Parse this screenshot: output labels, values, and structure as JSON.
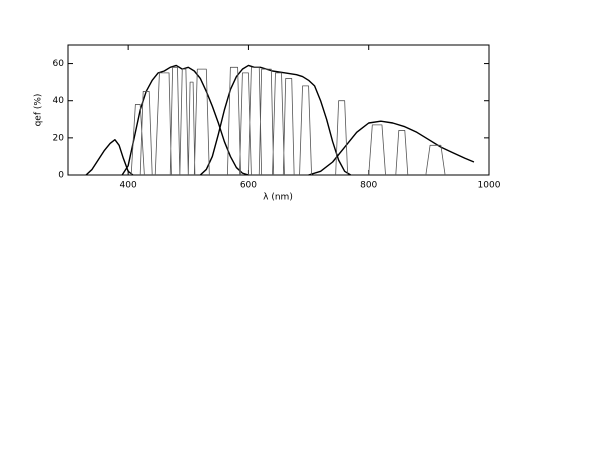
{
  "chart_data": {
    "type": "line",
    "xlabel": "λ (nm)",
    "ylabel": "qef (%)",
    "xlim": [
      300,
      1000
    ],
    "ylim": [
      0,
      70
    ],
    "xticks": [
      400,
      600,
      800,
      1000
    ],
    "yticks": [
      0,
      20,
      40,
      60
    ],
    "grid": false,
    "series": [
      {
        "color": "#000000",
        "width": 1.4,
        "x": [
          330,
          340,
          350,
          360,
          370,
          378,
          385,
          392,
          400,
          408
        ],
        "values": [
          0,
          3,
          8,
          13,
          17,
          19,
          16,
          9,
          2,
          0
        ]
      },
      {
        "color": "#000000",
        "width": 1.4,
        "x": [
          390,
          400,
          410,
          420,
          430,
          440,
          450,
          460,
          470,
          480,
          490,
          500,
          510,
          520,
          530,
          540,
          550,
          560,
          570,
          580,
          590,
          600
        ],
        "values": [
          0,
          5,
          20,
          35,
          45,
          51,
          55,
          56,
          58,
          59,
          57,
          58,
          56,
          52,
          45,
          37,
          28,
          18,
          10,
          4,
          1,
          0
        ]
      },
      {
        "color": "#000000",
        "width": 1.4,
        "x": [
          520,
          530,
          540,
          550,
          560,
          570,
          580,
          590,
          600,
          610,
          620,
          640,
          660,
          680,
          690,
          700,
          710,
          720,
          730,
          740,
          750,
          760,
          770
        ],
        "values": [
          0,
          3,
          10,
          22,
          35,
          46,
          53,
          57,
          59,
          58,
          58,
          56,
          55,
          54,
          53,
          51,
          48,
          40,
          30,
          18,
          8,
          2,
          0
        ]
      },
      {
        "color": "#000000",
        "width": 1.4,
        "x": [
          700,
          720,
          740,
          760,
          780,
          800,
          820,
          840,
          860,
          880,
          900,
          920,
          940,
          960,
          975
        ],
        "values": [
          0,
          2,
          7,
          15,
          23,
          28,
          29,
          28,
          26,
          23,
          19,
          15,
          12,
          9,
          7
        ]
      },
      {
        "color": "#555555",
        "width": 0.8,
        "x": [
          405,
          412,
          420,
          427,
          427,
          420,
          425,
          435,
          440,
          440,
          445,
          452,
          468,
          472,
          472,
          470,
          474,
          482,
          486,
          486,
          486,
          490,
          496,
          500,
          500,
          500,
          503,
          508,
          511,
          511,
          510,
          515,
          530,
          535,
          535,
          565,
          570,
          582,
          587,
          587,
          585,
          590,
          600,
          605,
          605,
          600,
          605,
          618,
          622,
          622,
          618,
          622,
          638,
          642,
          642,
          640,
          645,
          655,
          660,
          660,
          658,
          662,
          672,
          676,
          676,
          685,
          690,
          700,
          705,
          705,
          745,
          750,
          760,
          765,
          765,
          800,
          806,
          822,
          828,
          828,
          845,
          850,
          860,
          865,
          865,
          895,
          902,
          920,
          927
        ],
        "values": [
          0,
          38,
          38,
          0,
          null,
          0,
          45,
          45,
          0,
          null,
          0,
          55,
          55,
          0,
          null,
          0,
          58,
          58,
          0,
          null,
          0,
          57,
          57,
          0,
          null,
          0,
          50,
          50,
          0,
          null,
          0,
          57,
          57,
          0,
          null,
          0,
          58,
          58,
          0,
          null,
          0,
          55,
          55,
          0,
          null,
          0,
          58,
          58,
          0,
          null,
          0,
          57,
          57,
          0,
          null,
          0,
          55,
          55,
          0,
          null,
          0,
          52,
          52,
          0,
          null,
          0,
          48,
          48,
          0,
          null,
          0,
          40,
          40,
          0,
          null,
          0,
          27,
          27,
          0,
          null,
          0,
          24,
          24,
          0,
          null,
          0,
          16,
          16,
          0
        ]
      }
    ]
  }
}
